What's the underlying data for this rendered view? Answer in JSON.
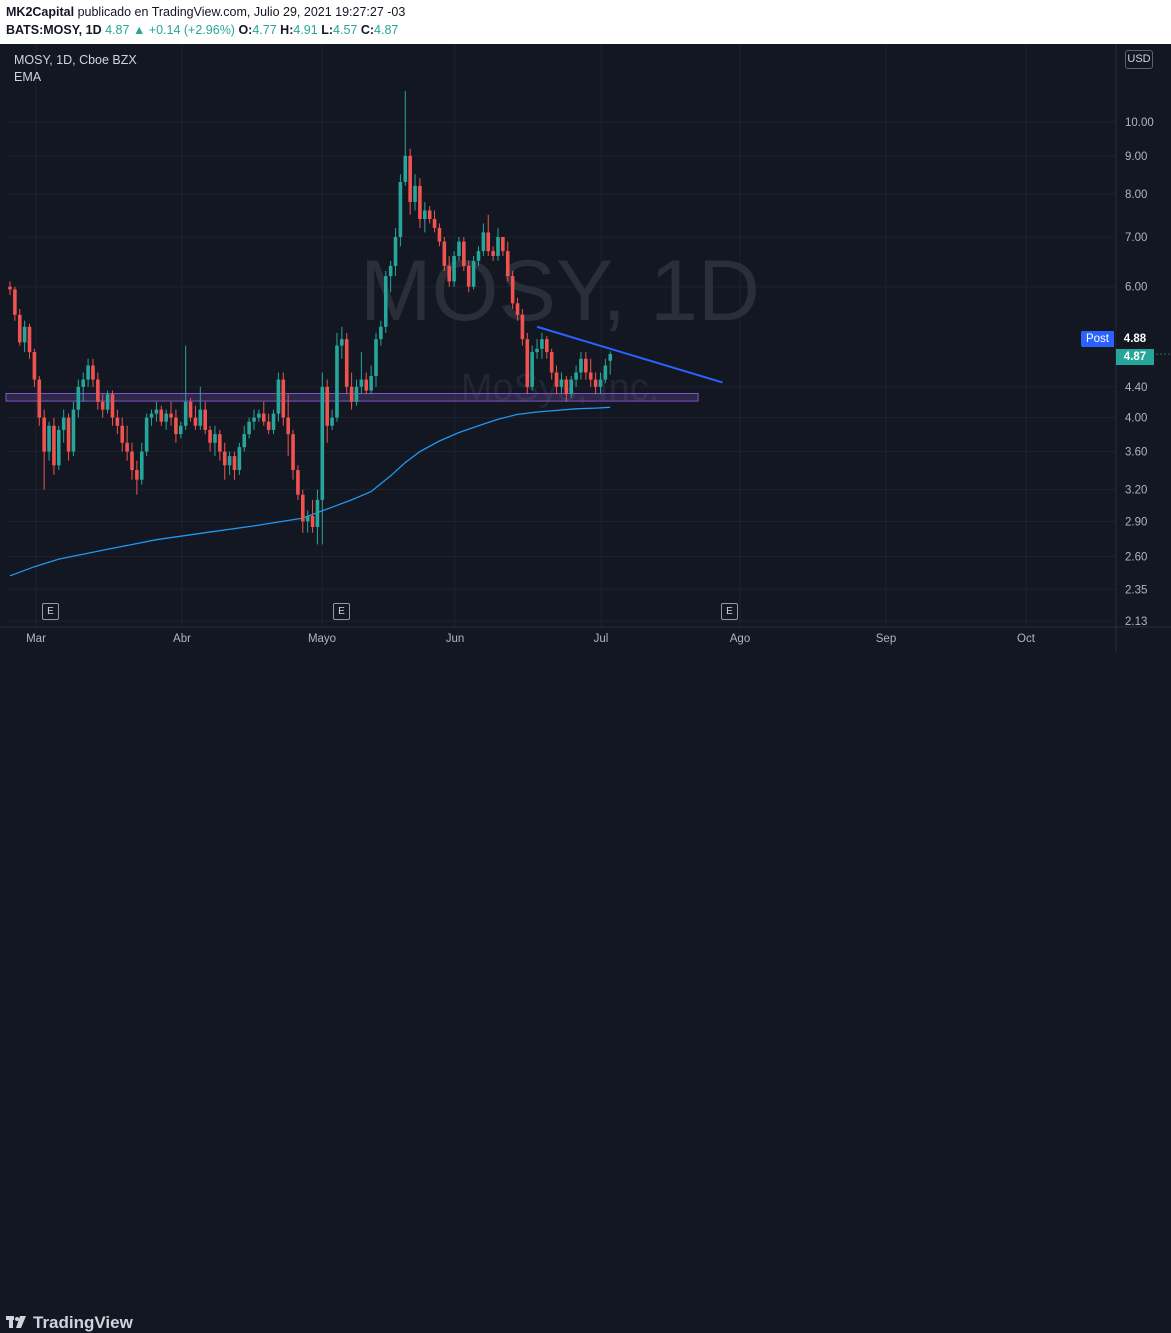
{
  "header": {
    "author": "MK2Capital",
    "published": "publicado en TradingView.com, Julio 29, 2021 19:27:27 -03",
    "symbol_line": "BATS:MOSY, 1D",
    "close_value": "4.87",
    "arrow": "▲",
    "change": "+0.14 (+2.96%)",
    "o_label": "O:",
    "o_value": "4.77",
    "h_label": "H:",
    "h_value": "4.91",
    "l_label": "L:",
    "l_value": "4.57",
    "c_label": "C:",
    "c_value": "4.87"
  },
  "legend": {
    "symbol": "MOSY, 1D, Cboe BZX",
    "indicator": "EMA"
  },
  "watermark": {
    "ticker": "MOSY, 1D",
    "name": "MoSys, Inc."
  },
  "price_scale": {
    "currency": "USD",
    "post_label": "Post",
    "post_value": "4.88",
    "last_value": "4.87"
  },
  "earnings_marker": "E",
  "footer": {
    "brand": "TradingView"
  },
  "colors": {
    "background": "#131722",
    "up": "#26a69a",
    "down": "#ef5350",
    "ema": "#2196f3",
    "trendline": "#2962ff",
    "support_zone": "#7e57c2"
  },
  "chart_data": {
    "type": "candlestick",
    "symbol": "BATS:MOSY",
    "interval": "1D",
    "y_scale": "log",
    "ylim": [
      2.1,
      12.5
    ],
    "y_ticks": [
      {
        "value": 10.0,
        "label": "10.00"
      },
      {
        "value": 9.0,
        "label": "9.00"
      },
      {
        "value": 8.0,
        "label": "8.00"
      },
      {
        "value": 7.0,
        "label": "7.00"
      },
      {
        "value": 6.0,
        "label": "6.00"
      },
      {
        "value": 4.4,
        "label": "4.40"
      },
      {
        "value": 4.0,
        "label": "4.00"
      },
      {
        "value": 3.6,
        "label": "3.60"
      },
      {
        "value": 3.2,
        "label": "3.20"
      },
      {
        "value": 2.9,
        "label": "2.90"
      },
      {
        "value": 2.6,
        "label": "2.60"
      },
      {
        "value": 2.35,
        "label": "2.35"
      },
      {
        "value": 2.13,
        "label": "2.13"
      }
    ],
    "x_ticks": [
      "Mar",
      "Abr",
      "Mayo",
      "Jun",
      "Jul",
      "Ago",
      "Sep",
      "Oct"
    ],
    "start_date": "2021-02-24",
    "candles": [
      [
        6.0,
        6.1,
        5.85,
        5.95
      ],
      [
        5.95,
        6.0,
        5.4,
        5.5
      ],
      [
        5.5,
        5.6,
        5.0,
        5.05
      ],
      [
        5.05,
        5.4,
        4.9,
        5.3
      ],
      [
        5.3,
        5.35,
        4.8,
        4.9
      ],
      [
        4.9,
        4.95,
        4.4,
        4.5
      ],
      [
        4.5,
        4.55,
        3.9,
        4.0
      ],
      [
        4.0,
        4.1,
        3.2,
        3.6
      ],
      [
        3.6,
        3.95,
        3.5,
        3.9
      ],
      [
        3.9,
        4.0,
        3.35,
        3.45
      ],
      [
        3.45,
        3.9,
        3.4,
        3.85
      ],
      [
        3.85,
        4.1,
        3.7,
        4.0
      ],
      [
        4.0,
        4.05,
        3.5,
        3.6
      ],
      [
        3.6,
        4.2,
        3.55,
        4.1
      ],
      [
        4.1,
        4.5,
        4.0,
        4.4
      ],
      [
        4.4,
        4.6,
        4.2,
        4.5
      ],
      [
        4.5,
        4.8,
        4.4,
        4.7
      ],
      [
        4.7,
        4.8,
        4.4,
        4.5
      ],
      [
        4.5,
        4.6,
        4.1,
        4.2
      ],
      [
        4.2,
        4.3,
        4.0,
        4.1
      ],
      [
        4.1,
        4.35,
        4.05,
        4.3
      ],
      [
        4.3,
        4.35,
        3.9,
        4.0
      ],
      [
        4.0,
        4.1,
        3.8,
        3.9
      ],
      [
        3.9,
        4.0,
        3.6,
        3.7
      ],
      [
        3.7,
        3.9,
        3.5,
        3.6
      ],
      [
        3.6,
        3.7,
        3.3,
        3.4
      ],
      [
        3.4,
        3.5,
        3.15,
        3.3
      ],
      [
        3.3,
        3.7,
        3.25,
        3.6
      ],
      [
        3.6,
        4.05,
        3.55,
        4.0
      ],
      [
        4.0,
        4.1,
        3.9,
        4.05
      ],
      [
        4.05,
        4.2,
        3.95,
        4.1
      ],
      [
        4.1,
        4.15,
        3.9,
        3.95
      ],
      [
        3.95,
        4.1,
        3.85,
        4.05
      ],
      [
        4.05,
        4.2,
        3.9,
        4.0
      ],
      [
        4.0,
        4.1,
        3.7,
        3.8
      ],
      [
        3.8,
        3.95,
        3.75,
        3.9
      ],
      [
        3.9,
        5.0,
        3.85,
        4.2
      ],
      [
        4.2,
        4.25,
        3.95,
        4.0
      ],
      [
        4.0,
        4.15,
        3.85,
        3.9
      ],
      [
        3.9,
        4.4,
        3.85,
        4.1
      ],
      [
        4.1,
        4.2,
        3.8,
        3.85
      ],
      [
        3.85,
        3.9,
        3.6,
        3.7
      ],
      [
        3.7,
        3.9,
        3.55,
        3.8
      ],
      [
        3.8,
        3.85,
        3.5,
        3.6
      ],
      [
        3.6,
        3.7,
        3.3,
        3.45
      ],
      [
        3.45,
        3.6,
        3.35,
        3.55
      ],
      [
        3.55,
        3.6,
        3.3,
        3.4
      ],
      [
        3.4,
        3.7,
        3.35,
        3.65
      ],
      [
        3.65,
        3.9,
        3.6,
        3.8
      ],
      [
        3.8,
        4.0,
        3.75,
        3.95
      ],
      [
        3.95,
        4.1,
        3.85,
        4.0
      ],
      [
        4.0,
        4.1,
        3.95,
        4.05
      ],
      [
        4.05,
        4.2,
        3.9,
        3.95
      ],
      [
        3.95,
        4.05,
        3.8,
        3.85
      ],
      [
        3.85,
        4.1,
        3.8,
        4.05
      ],
      [
        4.05,
        4.6,
        3.95,
        4.5
      ],
      [
        4.5,
        4.6,
        3.9,
        4.0
      ],
      [
        4.0,
        4.3,
        3.55,
        3.8
      ],
      [
        3.8,
        3.85,
        3.3,
        3.4
      ],
      [
        3.4,
        3.45,
        3.1,
        3.15
      ],
      [
        3.15,
        3.2,
        2.8,
        2.9
      ],
      [
        2.9,
        3.0,
        2.8,
        2.95
      ],
      [
        2.95,
        3.1,
        2.8,
        2.85
      ],
      [
        2.85,
        3.2,
        2.7,
        3.1
      ],
      [
        3.1,
        4.6,
        2.7,
        4.4
      ],
      [
        4.4,
        4.5,
        3.7,
        3.9
      ],
      [
        3.9,
        4.1,
        3.85,
        4.0
      ],
      [
        4.0,
        5.2,
        3.95,
        5.0
      ],
      [
        5.0,
        5.3,
        4.8,
        5.1
      ],
      [
        5.1,
        5.2,
        4.3,
        4.4
      ],
      [
        4.4,
        4.6,
        4.1,
        4.2
      ],
      [
        4.2,
        4.5,
        4.15,
        4.4
      ],
      [
        4.4,
        4.9,
        4.3,
        4.5
      ],
      [
        4.5,
        4.6,
        4.3,
        4.35
      ],
      [
        4.35,
        4.7,
        4.3,
        4.55
      ],
      [
        4.55,
        5.2,
        4.4,
        5.1
      ],
      [
        5.1,
        5.4,
        5.0,
        5.3
      ],
      [
        5.3,
        6.3,
        5.2,
        6.2
      ],
      [
        6.2,
        6.5,
        5.9,
        6.4
      ],
      [
        6.4,
        7.2,
        6.2,
        7.0
      ],
      [
        7.0,
        8.5,
        6.8,
        8.3
      ],
      [
        8.3,
        11.0,
        8.2,
        9.0
      ],
      [
        9.0,
        9.2,
        7.5,
        7.8
      ],
      [
        7.8,
        8.5,
        7.6,
        8.2
      ],
      [
        8.2,
        8.4,
        7.2,
        7.4
      ],
      [
        7.4,
        7.8,
        7.1,
        7.6
      ],
      [
        7.6,
        7.7,
        7.3,
        7.4
      ],
      [
        7.4,
        7.6,
        7.1,
        7.2
      ],
      [
        7.2,
        7.3,
        6.8,
        6.9
      ],
      [
        6.9,
        7.0,
        6.3,
        6.4
      ],
      [
        6.4,
        6.6,
        6.0,
        6.1
      ],
      [
        6.1,
        6.7,
        6.0,
        6.6
      ],
      [
        6.6,
        7.0,
        6.5,
        6.9
      ],
      [
        6.9,
        7.0,
        6.3,
        6.4
      ],
      [
        6.4,
        6.5,
        5.9,
        6.0
      ],
      [
        6.0,
        6.6,
        5.95,
        6.5
      ],
      [
        6.5,
        6.8,
        6.4,
        6.7
      ],
      [
        6.7,
        7.3,
        6.6,
        7.1
      ],
      [
        7.1,
        7.5,
        6.6,
        6.7
      ],
      [
        6.7,
        6.8,
        6.5,
        6.6
      ],
      [
        6.6,
        7.2,
        6.5,
        7.0
      ],
      [
        7.0,
        7.0,
        6.6,
        6.7
      ],
      [
        6.7,
        6.9,
        6.1,
        6.2
      ],
      [
        6.2,
        6.3,
        5.6,
        5.7
      ],
      [
        5.7,
        5.8,
        5.4,
        5.5
      ],
      [
        5.5,
        5.6,
        5.0,
        5.1
      ],
      [
        5.1,
        5.2,
        4.3,
        4.4
      ],
      [
        4.4,
        5.0,
        4.35,
        4.9
      ],
      [
        4.9,
        5.1,
        4.8,
        4.95
      ],
      [
        4.95,
        5.2,
        4.8,
        5.1
      ],
      [
        5.1,
        5.15,
        4.8,
        4.9
      ],
      [
        4.9,
        4.95,
        4.5,
        4.6
      ],
      [
        4.6,
        4.7,
        4.3,
        4.4
      ],
      [
        4.4,
        4.6,
        4.3,
        4.5
      ],
      [
        4.5,
        4.55,
        4.2,
        4.3
      ],
      [
        4.3,
        4.55,
        4.25,
        4.5
      ],
      [
        4.5,
        4.7,
        4.4,
        4.6
      ],
      [
        4.6,
        4.9,
        4.5,
        4.8
      ],
      [
        4.8,
        4.9,
        4.5,
        4.6
      ],
      [
        4.6,
        4.8,
        4.4,
        4.5
      ],
      [
        4.5,
        4.6,
        4.3,
        4.4
      ],
      [
        4.4,
        4.6,
        4.3,
        4.5
      ],
      [
        4.5,
        4.8,
        4.45,
        4.7
      ],
      [
        4.77,
        4.91,
        4.57,
        4.87
      ]
    ],
    "ema": [
      [
        0,
        2.45
      ],
      [
        5,
        2.52
      ],
      [
        10,
        2.58
      ],
      [
        20,
        2.66
      ],
      [
        30,
        2.74
      ],
      [
        40,
        2.8
      ],
      [
        50,
        2.86
      ],
      [
        60,
        2.93
      ],
      [
        63,
        2.98
      ],
      [
        66,
        3.03
      ],
      [
        70,
        3.1
      ],
      [
        74,
        3.18
      ],
      [
        78,
        3.34
      ],
      [
        81,
        3.48
      ],
      [
        84,
        3.6
      ],
      [
        88,
        3.72
      ],
      [
        92,
        3.82
      ],
      [
        96,
        3.9
      ],
      [
        100,
        3.98
      ],
      [
        104,
        4.04
      ],
      [
        108,
        4.07
      ],
      [
        112,
        4.09
      ],
      [
        116,
        4.11
      ],
      [
        120,
        4.12
      ],
      [
        123,
        4.13
      ]
    ],
    "trendline": {
      "from": [
        108,
        5.3
      ],
      "to": [
        146,
        4.46
      ]
    },
    "support_zone": {
      "from_bar": 0,
      "to_bar": 141,
      "low": 4.21,
      "high": 4.31
    },
    "earnings_bars": [
      6,
      59,
      123
    ]
  }
}
